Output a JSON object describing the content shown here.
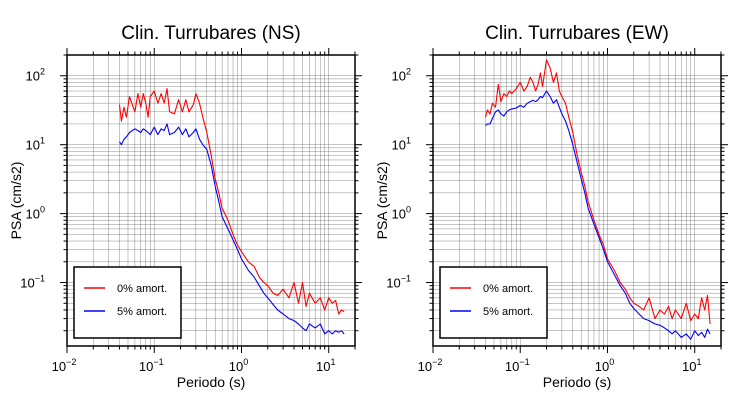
{
  "chart_data": [
    {
      "type": "line",
      "title": "Clin. Turrubares (NS)",
      "xlabel": "Periodo (s)",
      "ylabel": "PSA (cm/s2)",
      "xscale": "log",
      "yscale": "log",
      "xlim": [
        0.01,
        20
      ],
      "ylim": [
        0.012,
        200
      ],
      "xticks": [
        {
          "base": "10",
          "exp": "−2",
          "v": 0.01
        },
        {
          "base": "10",
          "exp": "−1",
          "v": 0.1
        },
        {
          "base": "10",
          "exp": "0",
          "v": 1
        },
        {
          "base": "10",
          "exp": "1",
          "v": 10
        }
      ],
      "yticks": [
        {
          "base": "10",
          "exp": "−1",
          "v": 0.1
        },
        {
          "base": "10",
          "exp": "0",
          "v": 1
        },
        {
          "base": "10",
          "exp": "1",
          "v": 10
        },
        {
          "base": "10",
          "exp": "2",
          "v": 100
        }
      ],
      "grid": true,
      "legend_position": "bottom-left",
      "series": [
        {
          "name": "0% amort.",
          "color": "#ff0000",
          "x": [
            0.04,
            0.042,
            0.045,
            0.048,
            0.052,
            0.056,
            0.06,
            0.065,
            0.07,
            0.075,
            0.08,
            0.085,
            0.09,
            0.1,
            0.11,
            0.12,
            0.13,
            0.14,
            0.15,
            0.17,
            0.19,
            0.21,
            0.23,
            0.25,
            0.28,
            0.3,
            0.33,
            0.36,
            0.4,
            0.45,
            0.5,
            0.55,
            0.6,
            0.7,
            0.8,
            0.9,
            1.0,
            1.2,
            1.4,
            1.6,
            1.8,
            2.0,
            2.3,
            2.6,
            3.0,
            3.5,
            4.0,
            4.5,
            5.0,
            5.5,
            6.0,
            7.0,
            8.0,
            9.0,
            10,
            11,
            12,
            13,
            14,
            15
          ],
          "y": [
            38,
            22,
            35,
            25,
            50,
            38,
            30,
            55,
            35,
            55,
            40,
            25,
            50,
            60,
            40,
            55,
            40,
            65,
            30,
            28,
            45,
            30,
            45,
            30,
            38,
            55,
            40,
            25,
            15,
            7,
            3.2,
            2.0,
            1.2,
            0.8,
            0.5,
            0.35,
            0.28,
            0.2,
            0.17,
            0.12,
            0.1,
            0.09,
            0.07,
            0.065,
            0.08,
            0.06,
            0.1,
            0.05,
            0.1,
            0.045,
            0.07,
            0.05,
            0.06,
            0.04,
            0.06,
            0.05,
            0.055,
            0.035,
            0.04,
            0.038
          ]
        },
        {
          "name": "5% amort.",
          "color": "#0000ff",
          "x": [
            0.04,
            0.042,
            0.045,
            0.048,
            0.052,
            0.056,
            0.06,
            0.065,
            0.07,
            0.075,
            0.08,
            0.085,
            0.09,
            0.1,
            0.11,
            0.12,
            0.13,
            0.14,
            0.15,
            0.17,
            0.19,
            0.21,
            0.23,
            0.25,
            0.28,
            0.3,
            0.33,
            0.36,
            0.4,
            0.45,
            0.5,
            0.55,
            0.6,
            0.7,
            0.8,
            0.9,
            1.0,
            1.2,
            1.4,
            1.6,
            1.8,
            2.0,
            2.3,
            2.6,
            3.0,
            3.5,
            4.0,
            4.5,
            5.0,
            5.5,
            6.0,
            7.0,
            8.0,
            9.0,
            10,
            11,
            12,
            13,
            14,
            15
          ],
          "y": [
            11,
            10,
            12,
            13,
            15,
            16,
            17,
            16,
            15,
            17,
            16,
            15,
            14,
            18,
            14,
            17,
            16,
            20,
            14,
            15,
            18,
            14,
            17,
            13,
            15,
            17,
            12,
            10,
            8.5,
            5,
            2.5,
            1.5,
            0.9,
            0.6,
            0.42,
            0.3,
            0.22,
            0.15,
            0.12,
            0.09,
            0.07,
            0.06,
            0.048,
            0.04,
            0.035,
            0.03,
            0.028,
            0.025,
            0.022,
            0.02,
            0.025,
            0.022,
            0.025,
            0.018,
            0.02,
            0.018,
            0.02,
            0.019,
            0.02,
            0.018
          ]
        }
      ]
    },
    {
      "type": "line",
      "title": "Clin. Turrubares (EW)",
      "xlabel": "Periodo (s)",
      "ylabel": "PSA (cm/s2)",
      "xscale": "log",
      "yscale": "log",
      "xlim": [
        0.01,
        20
      ],
      "ylim": [
        0.012,
        200
      ],
      "xticks": [
        {
          "base": "10",
          "exp": "−2",
          "v": 0.01
        },
        {
          "base": "10",
          "exp": "−1",
          "v": 0.1
        },
        {
          "base": "10",
          "exp": "0",
          "v": 1
        },
        {
          "base": "10",
          "exp": "1",
          "v": 10
        }
      ],
      "yticks": [
        {
          "base": "10",
          "exp": "−1",
          "v": 0.1
        },
        {
          "base": "10",
          "exp": "0",
          "v": 1
        },
        {
          "base": "10",
          "exp": "1",
          "v": 10
        },
        {
          "base": "10",
          "exp": "2",
          "v": 100
        }
      ],
      "grid": true,
      "legend_position": "bottom-left",
      "series": [
        {
          "name": "0% amort.",
          "color": "#ff0000",
          "x": [
            0.04,
            0.042,
            0.045,
            0.048,
            0.052,
            0.056,
            0.06,
            0.065,
            0.07,
            0.075,
            0.08,
            0.09,
            0.1,
            0.11,
            0.12,
            0.13,
            0.14,
            0.15,
            0.16,
            0.17,
            0.18,
            0.2,
            0.22,
            0.24,
            0.26,
            0.28,
            0.3,
            0.33,
            0.36,
            0.4,
            0.45,
            0.5,
            0.55,
            0.6,
            0.7,
            0.8,
            0.9,
            1.0,
            1.2,
            1.4,
            1.6,
            1.8,
            2.0,
            2.3,
            2.6,
            3.0,
            3.5,
            4.0,
            4.5,
            5.0,
            5.5,
            6.0,
            7.0,
            8.0,
            9.0,
            10,
            11,
            12,
            13,
            14,
            15
          ],
          "y": [
            25,
            32,
            28,
            40,
            35,
            75,
            42,
            55,
            50,
            60,
            55,
            65,
            80,
            60,
            70,
            95,
            80,
            60,
            75,
            110,
            70,
            170,
            130,
            80,
            110,
            60,
            50,
            40,
            25,
            15,
            7,
            4,
            2.5,
            1.5,
            0.8,
            0.5,
            0.35,
            0.22,
            0.15,
            0.1,
            0.08,
            0.06,
            0.05,
            0.045,
            0.04,
            0.06,
            0.03,
            0.04,
            0.035,
            0.045,
            0.03,
            0.04,
            0.03,
            0.05,
            0.028,
            0.035,
            0.03,
            0.06,
            0.04,
            0.065,
            0.025
          ]
        },
        {
          "name": "5% amort.",
          "color": "#0000ff",
          "x": [
            0.04,
            0.042,
            0.045,
            0.048,
            0.052,
            0.056,
            0.06,
            0.065,
            0.07,
            0.075,
            0.08,
            0.09,
            0.1,
            0.11,
            0.12,
            0.13,
            0.14,
            0.15,
            0.16,
            0.17,
            0.18,
            0.2,
            0.22,
            0.24,
            0.26,
            0.28,
            0.3,
            0.33,
            0.36,
            0.4,
            0.45,
            0.5,
            0.55,
            0.6,
            0.7,
            0.8,
            0.9,
            1.0,
            1.2,
            1.4,
            1.6,
            1.8,
            2.0,
            2.3,
            2.6,
            3.0,
            3.5,
            4.0,
            4.5,
            5.0,
            5.5,
            6.0,
            7.0,
            8.0,
            9.0,
            10,
            11,
            12,
            13,
            14,
            15
          ],
          "y": [
            19,
            20,
            20,
            24,
            30,
            32,
            28,
            26,
            30,
            32,
            33,
            34,
            37,
            35,
            40,
            42,
            44,
            42,
            45,
            50,
            48,
            60,
            50,
            40,
            45,
            35,
            28,
            22,
            16,
            10,
            5.5,
            3.2,
            2.0,
            1.2,
            0.7,
            0.45,
            0.3,
            0.2,
            0.13,
            0.09,
            0.07,
            0.05,
            0.042,
            0.035,
            0.03,
            0.028,
            0.025,
            0.024,
            0.022,
            0.02,
            0.018,
            0.02,
            0.016,
            0.018,
            0.015,
            0.02,
            0.017,
            0.019,
            0.016,
            0.021,
            0.018
          ]
        }
      ]
    }
  ]
}
